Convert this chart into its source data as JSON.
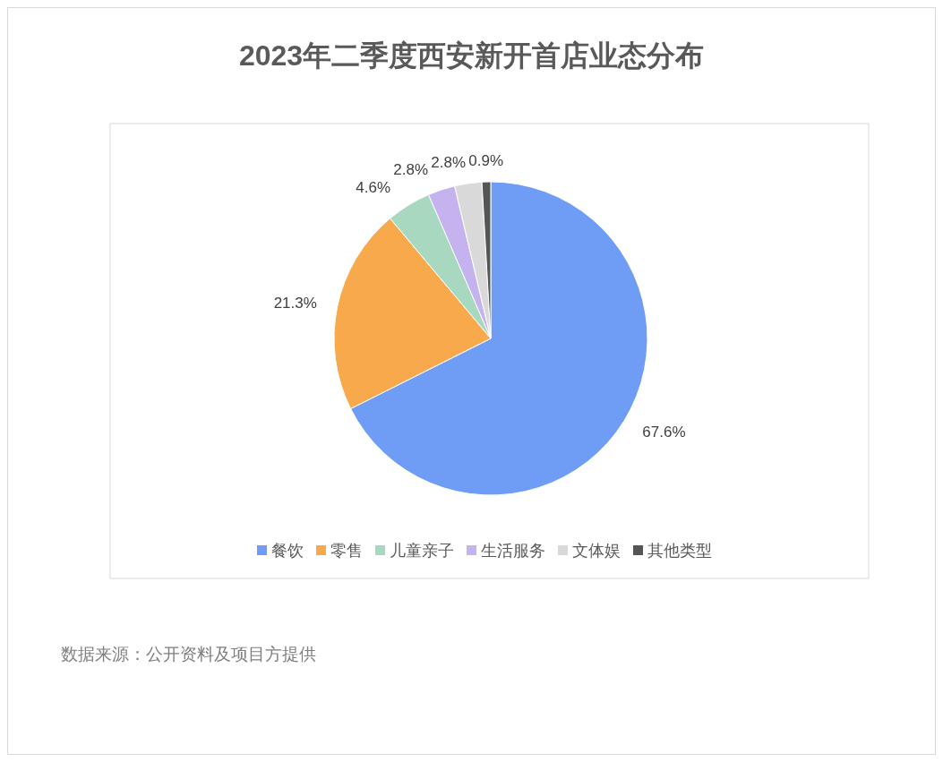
{
  "chart_data": {
    "type": "pie",
    "title": "2023年二季度西安新开首店业态分布",
    "categories": [
      "餐饮",
      "零售",
      "儿童亲子",
      "生活服务",
      "文体娱",
      "其他类型"
    ],
    "values": [
      67.6,
      21.3,
      4.6,
      2.8,
      2.8,
      0.9
    ],
    "colors": [
      "#6f9cf5",
      "#f7a94b",
      "#a9d8c0",
      "#c5b3ef",
      "#d9d9d9",
      "#555555"
    ],
    "value_labels": [
      "67.6%",
      "21.3%",
      "4.6%",
      "2.8%",
      "2.8%",
      "0.9%"
    ],
    "legend": "bottom",
    "annotations": [
      "数据来源：公开资料及项目方提供"
    ]
  }
}
